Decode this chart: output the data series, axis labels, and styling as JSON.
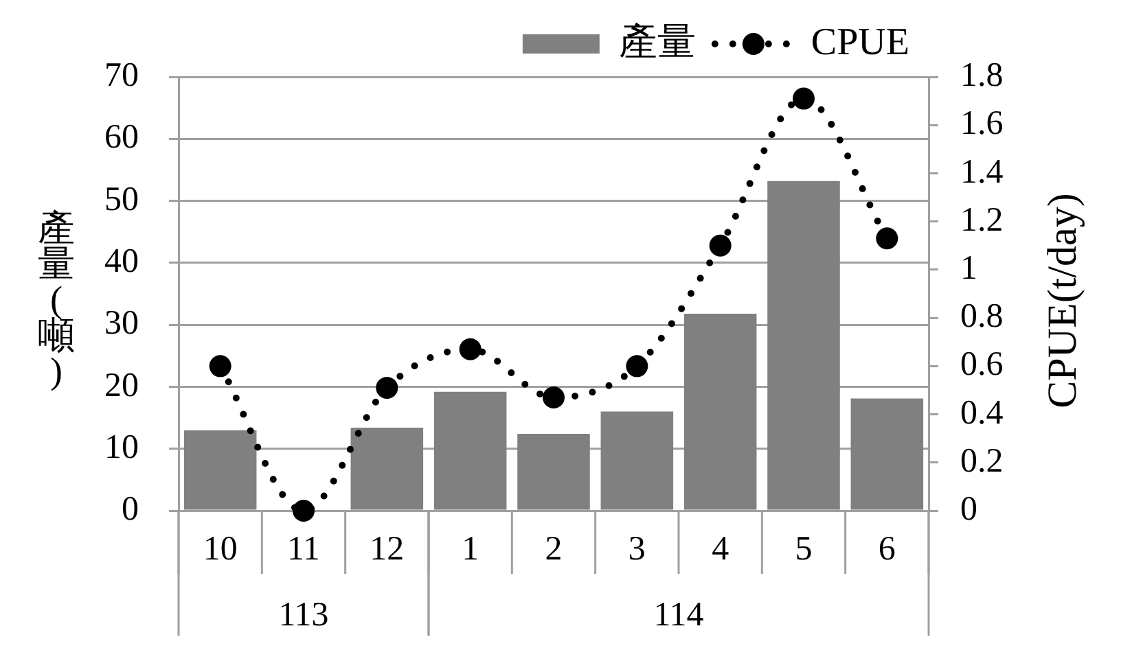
{
  "chart_data": {
    "type": "bar",
    "categories": [
      "10",
      "11",
      "12",
      "1",
      "2",
      "3",
      "4",
      "5",
      "6"
    ],
    "series": [
      {
        "name": "產量",
        "color": "#808080",
        "values": [
          13,
          0,
          13.4,
          19.2,
          12.4,
          16,
          31.8,
          53.2,
          18.1
        ]
      },
      {
        "name": "CPUE",
        "type": "line",
        "axis": "y2",
        "color": "#000000",
        "marker": "circle",
        "line_style": "dotted",
        "values": [
          0.6,
          0,
          0.51,
          0.67,
          0.47,
          0.6,
          1.1,
          1.71,
          1.13
        ]
      }
    ],
    "ylabel": "產量(噸)",
    "y2label": "CPUE(t/day)",
    "ylim": [
      0,
      70
    ],
    "yticks": [
      0,
      10,
      20,
      30,
      40,
      50,
      60,
      70
    ],
    "y2lim": [
      0,
      1.8
    ],
    "y2ticks": [
      0,
      0.2,
      0.4,
      0.6,
      0.8,
      1,
      1.2,
      1.4,
      1.6,
      1.8
    ],
    "grid": "y",
    "legend": "top right",
    "annotations": [
      "113",
      "114"
    ]
  }
}
